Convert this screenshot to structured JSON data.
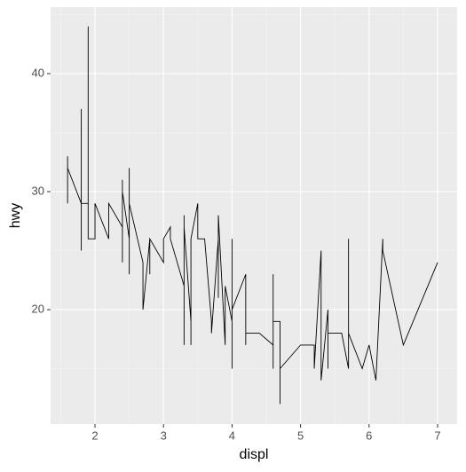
{
  "chart_data": {
    "type": "line",
    "x_label": "displ",
    "y_label": "hwy",
    "x": [
      1.6,
      1.6,
      1.6,
      1.8,
      1.8,
      1.8,
      1.8,
      1.9,
      1.9,
      1.9,
      2.0,
      2.0,
      2.2,
      2.2,
      2.4,
      2.4,
      2.4,
      2.4,
      2.5,
      2.5,
      2.5,
      2.5,
      2.7,
      2.7,
      2.8,
      2.8,
      2.8,
      3.0,
      3.0,
      3.1,
      3.1,
      3.3,
      3.3,
      3.3,
      3.3,
      3.4,
      3.4,
      3.4,
      3.5,
      3.5,
      3.6,
      3.7,
      3.7,
      3.8,
      3.8,
      3.8,
      3.9,
      3.9,
      4.0,
      4.0,
      4.0,
      4.0,
      4.2,
      4.2,
      4.2,
      4.4,
      4.6,
      4.6,
      4.6,
      4.6,
      4.7,
      4.7,
      4.7,
      5.0,
      5.2,
      5.2,
      5.3,
      5.3,
      5.4,
      5.4,
      5.4,
      5.6,
      5.7,
      5.7,
      5.7,
      5.9,
      6.0,
      6.1,
      6.2,
      6.2,
      6.5,
      7.0
    ],
    "values": [
      33,
      29,
      32,
      29,
      37,
      25,
      29,
      29,
      44,
      26,
      26,
      29,
      26,
      29,
      27,
      31,
      24,
      30,
      26,
      32,
      23,
      29,
      24,
      20,
      26,
      23,
      26,
      24,
      26,
      27,
      26,
      22,
      28,
      17,
      27,
      19,
      17,
      26,
      29,
      26,
      26,
      19,
      18,
      26,
      21,
      28,
      17,
      22,
      19,
      26,
      15,
      20,
      23,
      17,
      18,
      18,
      17,
      15,
      23,
      19,
      19,
      12,
      15,
      17,
      17,
      15,
      25,
      14,
      20,
      15,
      18,
      18,
      15,
      26,
      18,
      15,
      17,
      14,
      26,
      25,
      17,
      24
    ],
    "color": "#000000",
    "xlim": [
      1.352,
      7.285
    ],
    "ylim": [
      10.3,
      45.64
    ],
    "xticks": [
      2,
      3,
      4,
      5,
      6,
      7
    ],
    "yticks": [
      20,
      30,
      40
    ],
    "xminor": [
      1.5,
      2.5,
      3.5,
      4.5,
      5.5,
      6.5
    ],
    "yminor": [
      15,
      25,
      35,
      45
    ],
    "grid": true
  }
}
